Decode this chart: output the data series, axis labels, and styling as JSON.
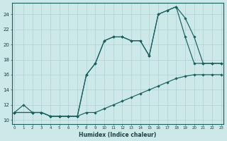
{
  "xlabel": "Humidex (Indice chaleur)",
  "bg_color": "#cce8e8",
  "grid_color": "#b0d0d0",
  "line_color": "#1a6060",
  "xlim_min": -0.3,
  "xlim_max": 23.3,
  "ylim_min": 9.5,
  "ylim_max": 25.5,
  "yticks": [
    10,
    12,
    14,
    16,
    18,
    20,
    22,
    24
  ],
  "xticks": [
    0,
    1,
    2,
    3,
    4,
    5,
    6,
    7,
    8,
    9,
    10,
    11,
    12,
    13,
    14,
    15,
    16,
    17,
    18,
    19,
    20,
    21,
    22,
    23
  ],
  "line1_x": [
    0,
    1,
    2,
    3,
    4,
    5,
    6,
    7,
    8,
    9,
    10,
    11,
    12,
    13,
    14,
    15,
    16,
    17,
    18,
    19,
    20,
    21,
    22,
    23
  ],
  "line1_y": [
    11,
    12,
    11,
    11,
    10.5,
    10.5,
    10.5,
    10.5,
    11,
    11,
    11.5,
    12,
    12.5,
    13,
    13.5,
    14,
    14.5,
    15,
    15.5,
    15.8,
    16,
    16,
    16,
    16
  ],
  "line2_x": [
    0,
    2,
    3,
    4,
    5,
    6,
    7,
    8,
    9,
    10,
    11,
    12,
    13,
    14,
    15,
    16,
    17,
    18,
    19,
    20,
    21,
    22,
    23
  ],
  "line2_y": [
    11,
    11,
    11,
    10.5,
    10.5,
    10.5,
    10.5,
    16,
    17.5,
    20.5,
    21,
    21,
    20.5,
    20.5,
    18.5,
    24,
    24.5,
    25,
    23.5,
    21,
    17.5,
    17.5,
    17.5
  ],
  "line3_x": [
    0,
    2,
    3,
    4,
    5,
    6,
    7,
    8,
    9,
    10,
    11,
    12,
    13,
    14,
    15,
    16,
    17,
    18,
    19,
    20,
    21,
    22,
    23
  ],
  "line3_y": [
    11,
    11,
    11,
    10.5,
    10.5,
    10.5,
    10.5,
    16,
    17.5,
    20.5,
    21,
    21,
    20.5,
    20.5,
    18.5,
    24,
    24.5,
    25,
    21,
    17.5,
    17.5,
    17.5,
    17.5
  ]
}
